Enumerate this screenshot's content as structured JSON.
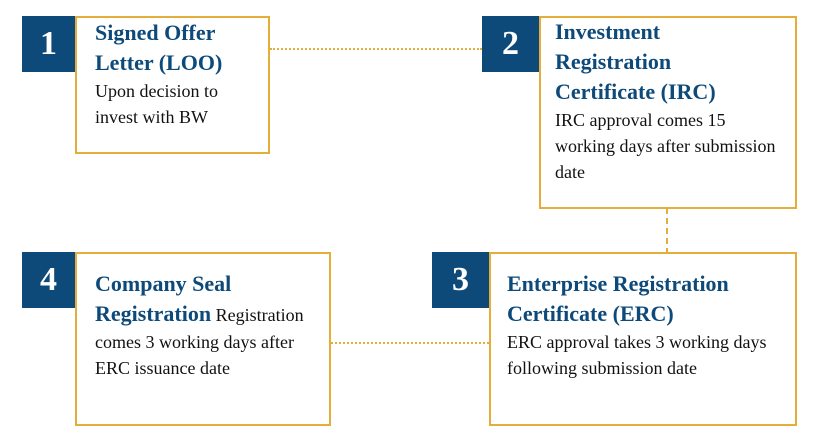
{
  "steps": [
    {
      "number": "1",
      "title": "Signed Offer Letter (LOO)",
      "title_lines": [
        "Signed Offer",
        "Letter (LOO)"
      ],
      "description_lines": [
        "Upon decision to",
        "invest with BW"
      ]
    },
    {
      "number": "2",
      "title_lines": [
        "Investment",
        "Registration",
        "Certificate (IRC)"
      ],
      "description_lines": [
        "IRC approval comes 15",
        "working days after submission",
        "date"
      ]
    },
    {
      "number": "3",
      "title_lines": [
        "Enterprise Registration",
        "Certificate (ERC)"
      ],
      "description_lines": [
        "ERC approval takes 3 working days",
        "following submission date"
      ]
    },
    {
      "number": "4",
      "title_lines": [
        "Company Seal",
        "Registration"
      ],
      "description_inline": " Registration",
      "description_lines": [
        "comes 3 working days after",
        "ERC issuance date"
      ]
    }
  ],
  "colors": {
    "accent_border": "#e5ae3a",
    "number_badge": "#0d4a7a",
    "title_text": "#0d4a7a"
  }
}
